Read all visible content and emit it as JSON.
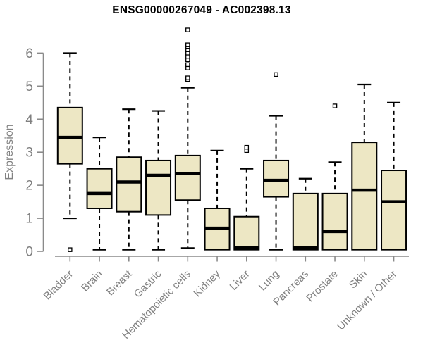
{
  "title": "ENSG00000267049 - AC002398.13",
  "chart_data": {
    "type": "boxplot",
    "title": "ENSG00000267049 - AC002398.13",
    "xlabel": "",
    "ylabel": "Expression",
    "ylim": [
      0,
      6
    ],
    "yticks": [
      "0",
      "1",
      "2",
      "3",
      "4",
      "5",
      "6"
    ],
    "grid": false,
    "legend": "none",
    "colors": {
      "box_fill": "#EDE7C4",
      "box_stroke": "#000000",
      "axis_line": "#8A8A8A",
      "tick_text": "#808080",
      "title_text": "#000000",
      "outlier_fill": "#FFFFFF"
    },
    "categories": [
      "Bladder",
      "Brain",
      "Breast",
      "Gastric",
      "Hematopoietic cells",
      "Kidney",
      "Liver",
      "Lung",
      "Pancreas",
      "Prostate",
      "Skin",
      "Unknown / Other"
    ],
    "boxes": [
      {
        "category": "Bladder",
        "whisker_low": 1.0,
        "q1": 2.65,
        "median": 3.45,
        "q3": 4.35,
        "whisker_high": 6.0,
        "outliers": [
          0.05
        ]
      },
      {
        "category": "Brain",
        "whisker_low": 0.05,
        "q1": 1.3,
        "median": 1.75,
        "q3": 2.5,
        "whisker_high": 3.45,
        "outliers": []
      },
      {
        "category": "Breast",
        "whisker_low": 0.05,
        "q1": 1.2,
        "median": 2.1,
        "q3": 2.85,
        "whisker_high": 4.3,
        "outliers": []
      },
      {
        "category": "Gastric",
        "whisker_low": 0.05,
        "q1": 1.1,
        "median": 2.3,
        "q3": 2.75,
        "whisker_high": 4.25,
        "outliers": []
      },
      {
        "category": "Hematopoietic cells",
        "whisker_low": 0.1,
        "q1": 1.55,
        "median": 2.35,
        "q3": 2.9,
        "whisker_high": 4.95,
        "outliers": [
          5.2,
          5.25,
          5.55,
          5.65,
          5.8,
          5.9,
          6.0,
          6.1,
          6.2,
          6.25,
          6.7
        ]
      },
      {
        "category": "Kidney",
        "whisker_low": 0.05,
        "q1": 0.05,
        "median": 0.7,
        "q3": 1.3,
        "whisker_high": 3.05,
        "outliers": []
      },
      {
        "category": "Liver",
        "whisker_low": 0.05,
        "q1": 0.05,
        "median": 0.1,
        "q3": 1.05,
        "whisker_high": 2.5,
        "outliers": [
          3.05,
          3.15
        ]
      },
      {
        "category": "Lung",
        "whisker_low": 0.05,
        "q1": 1.65,
        "median": 2.15,
        "q3": 2.75,
        "whisker_high": 4.1,
        "outliers": [
          5.35
        ]
      },
      {
        "category": "Pancreas",
        "whisker_low": 0.05,
        "q1": 0.05,
        "median": 0.1,
        "q3": 1.75,
        "whisker_high": 2.2,
        "outliers": []
      },
      {
        "category": "Prostate",
        "whisker_low": 0.05,
        "q1": 0.05,
        "median": 0.6,
        "q3": 1.75,
        "whisker_high": 2.7,
        "outliers": [
          4.4
        ]
      },
      {
        "category": "Skin",
        "whisker_low": 0.05,
        "q1": 0.05,
        "median": 1.85,
        "q3": 3.3,
        "whisker_high": 5.05,
        "outliers": []
      },
      {
        "category": "Unknown / Other",
        "whisker_low": 0.05,
        "q1": 0.05,
        "median": 1.5,
        "q3": 2.45,
        "whisker_high": 4.5,
        "outliers": []
      }
    ]
  }
}
